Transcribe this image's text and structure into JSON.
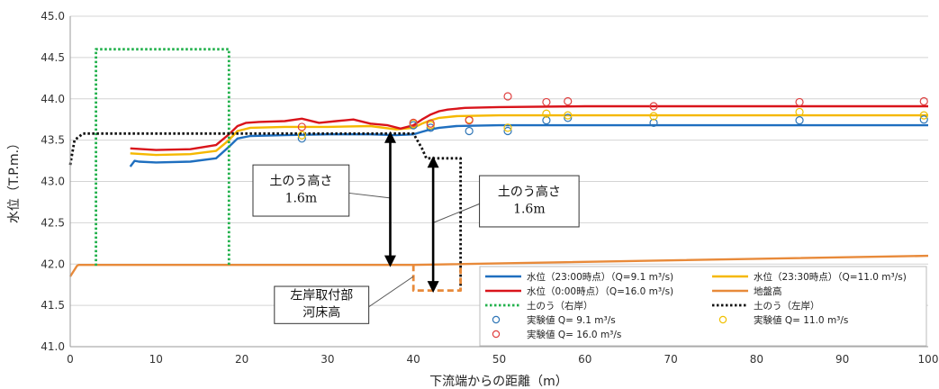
{
  "chart_data": {
    "type": "line",
    "xlabel": "下流端からの距離（m）",
    "ylabel": "水位（T.P.m.）",
    "xlim": [
      0,
      100
    ],
    "ylim": [
      41.0,
      45.0
    ],
    "xticks": [
      0,
      10,
      20,
      30,
      40,
      50,
      60,
      70,
      80,
      90,
      100
    ],
    "yticks": [
      41.0,
      41.5,
      42.0,
      42.5,
      43.0,
      43.5,
      44.0,
      44.5,
      45.0
    ],
    "xtick_labels": [
      "0",
      "10",
      "20",
      "30",
      "40",
      "50",
      "60",
      "70",
      "80",
      "90",
      "100"
    ],
    "ytick_labels": [
      "41.0",
      "41.5",
      "42.0",
      "42.5",
      "43.0",
      "43.5",
      "44.0",
      "44.5",
      "45.0"
    ],
    "grid": "horizontal",
    "legend_position": "bottom-right",
    "series": [
      {
        "name": "水位（23:00時点）（Q=9.1 m³/s)",
        "color": "#1f6fbf",
        "style": "solid",
        "x": [
          7,
          7.5,
          8,
          10,
          14,
          17,
          18.5,
          19.5,
          21,
          25,
          30,
          35,
          38,
          40,
          41,
          42,
          43,
          45,
          50,
          60,
          70,
          80,
          90,
          100
        ],
        "y": [
          43.18,
          43.25,
          43.24,
          43.23,
          43.24,
          43.28,
          43.42,
          43.52,
          43.55,
          43.56,
          43.57,
          43.57,
          43.56,
          43.57,
          43.6,
          43.63,
          43.65,
          43.67,
          43.68,
          43.68,
          43.68,
          43.68,
          43.68,
          43.68
        ]
      },
      {
        "name": "水位（23:30時点）（Q=11.0 m³/s)",
        "color": "#f5b800",
        "style": "solid",
        "x": [
          7,
          10,
          14,
          17,
          18.5,
          19.5,
          21,
          25,
          30,
          35,
          38,
          40,
          41,
          42,
          43,
          45,
          50,
          60,
          70,
          80,
          90,
          100
        ],
        "y": [
          43.34,
          43.32,
          43.33,
          43.37,
          43.5,
          43.61,
          43.65,
          43.66,
          43.66,
          43.67,
          43.63,
          43.65,
          43.7,
          43.74,
          43.77,
          43.79,
          43.8,
          43.8,
          43.8,
          43.8,
          43.8,
          43.8
        ]
      },
      {
        "name": "水位（0:00時点）（Q=16.0 m³/s)",
        "color": "#d9141b",
        "style": "solid",
        "x": [
          7,
          10,
          14,
          17,
          18.5,
          19.5,
          20.5,
          22,
          25,
          27,
          29,
          31,
          33,
          35,
          37,
          38.5,
          40,
          41,
          42,
          43,
          44,
          46,
          50,
          60,
          70,
          80,
          90,
          100
        ],
        "y": [
          43.4,
          43.38,
          43.39,
          43.44,
          43.57,
          43.67,
          43.71,
          43.72,
          43.73,
          43.76,
          43.71,
          43.73,
          43.75,
          43.7,
          43.68,
          43.64,
          43.68,
          43.75,
          43.81,
          43.85,
          43.87,
          43.89,
          43.9,
          43.91,
          43.91,
          43.91,
          43.91,
          43.91
        ]
      },
      {
        "name": "地盤高",
        "color": "#e88a3a",
        "style": "solid",
        "x": [
          0,
          0.8,
          1,
          40,
          100
        ],
        "y": [
          41.85,
          41.98,
          41.99,
          41.99,
          42.1
        ]
      },
      {
        "name": "土のう（右岸）",
        "color": "#22b14c",
        "style": "dotted",
        "x": [
          3,
          3,
          18.5,
          18.5
        ],
        "y": [
          41.98,
          44.6,
          44.6,
          41.98
        ]
      },
      {
        "name": "土のう（左岸）",
        "color": "#111111",
        "style": "dotted",
        "x": [
          0,
          0.5,
          1.5,
          4,
          40,
          41,
          41.5,
          45.5,
          45.5
        ],
        "y": [
          43.2,
          43.5,
          43.58,
          43.58,
          43.58,
          43.4,
          43.28,
          43.28,
          41.7
        ]
      },
      {
        "name": "",
        "color": "#e88a3a",
        "style": "dashed",
        "x": [
          40,
          40,
          45.5,
          45.5
        ],
        "y": [
          41.99,
          41.68,
          41.68,
          41.99
        ]
      }
    ],
    "scatter_series": [
      {
        "name": "実験値 Q= 9.1 m³/s",
        "color": "#2e75b6",
        "x": [
          27,
          40,
          42,
          46.5,
          51,
          55.5,
          58,
          68,
          85,
          99.5
        ],
        "y": [
          43.52,
          43.68,
          43.65,
          43.61,
          43.61,
          43.74,
          43.77,
          43.71,
          43.74,
          43.75
        ]
      },
      {
        "name": "実験値 Q= 11.0 m³/s",
        "color": "#f0c000",
        "x": [
          27,
          40,
          42,
          46.5,
          51,
          55.5,
          58,
          68,
          85,
          99.5
        ],
        "y": [
          43.56,
          43.7,
          43.68,
          43.75,
          43.65,
          43.82,
          43.8,
          43.79,
          43.84,
          43.8
        ]
      },
      {
        "name": "実験値 Q= 16.0 m³/s",
        "color": "#e04040",
        "x": [
          27,
          40,
          42,
          46.5,
          51,
          55.5,
          58,
          68,
          85,
          99.5
        ],
        "y": [
          43.66,
          43.71,
          43.7,
          43.74,
          44.03,
          43.96,
          43.97,
          43.91,
          43.96,
          43.97
        ]
      }
    ],
    "annotations": [
      {
        "lines": [
          "土のう高さ",
          "1.6m"
        ],
        "kind": "box",
        "x0": 21.3,
        "x1": 32.5,
        "y0": 42.58,
        "y1": 43.2,
        "arrow": {
          "x": 37.3,
          "y0": 43.58,
          "y1": 41.99
        },
        "leader": {
          "x": 37.3,
          "y": 42.8
        }
      },
      {
        "lines": [
          "土のう高さ",
          "1.6m"
        ],
        "kind": "box",
        "x0": 47.7,
        "x1": 59.3,
        "y0": 42.45,
        "y1": 43.07,
        "arrow": {
          "x": 42.3,
          "y0": 43.28,
          "y1": 41.68
        },
        "leader": {
          "x": 42.3,
          "y": 42.5
        }
      },
      {
        "lines": [
          "左岸取付部",
          "河床高"
        ],
        "kind": "box",
        "x0": 23.8,
        "x1": 34.8,
        "y0": 41.28,
        "y1": 41.73,
        "leader": {
          "x": 40.0,
          "y": 41.85
        }
      }
    ],
    "legend": [
      {
        "label": "水位（23:00時点）（Q=9.1 m³/s)",
        "series": 0,
        "kind": "line",
        "col": 0,
        "row": 0
      },
      {
        "label": "水位（23:30時点）（Q=11.0 m³/s)",
        "series": 1,
        "kind": "line",
        "col": 1,
        "row": 0
      },
      {
        "label": "水位（0:00時点）（Q=16.0 m³/s)",
        "series": 2,
        "kind": "line",
        "col": 0,
        "row": 1
      },
      {
        "label": "地盤高",
        "series": 3,
        "kind": "line",
        "col": 1,
        "row": 1
      },
      {
        "label": "土のう（右岸）",
        "series": 4,
        "kind": "line",
        "col": 0,
        "row": 2
      },
      {
        "label": "土のう（左岸）",
        "series": 5,
        "kind": "line",
        "col": 1,
        "row": 2
      },
      {
        "label": "実験値 Q= 9.1 m³/s",
        "scatter": 0,
        "kind": "marker",
        "col": 0,
        "row": 3
      },
      {
        "label": "実験値 Q= 11.0 m³/s",
        "scatter": 1,
        "kind": "marker",
        "col": 1,
        "row": 3
      },
      {
        "label": "実験値 Q= 16.0 m³/s",
        "scatter": 2,
        "kind": "marker",
        "col": 0,
        "row": 4
      }
    ]
  }
}
